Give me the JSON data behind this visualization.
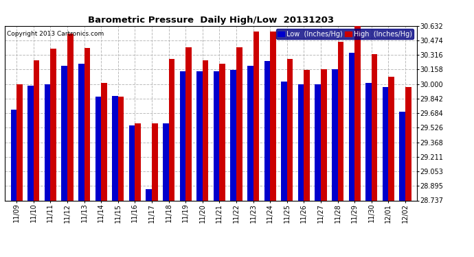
{
  "title": "Barometric Pressure  Daily High/Low  20131203",
  "copyright": "Copyright 2013 Cartronics.com",
  "legend_low": "Low  (Inches/Hg)",
  "legend_high": "High  (Inches/Hg)",
  "low_color": "#0000cc",
  "high_color": "#cc0000",
  "background_color": "#ffffff",
  "grid_color": "#bbbbbb",
  "ymin": 28.737,
  "ymax": 30.632,
  "yticks": [
    28.737,
    28.895,
    29.053,
    29.211,
    29.368,
    29.526,
    29.684,
    29.842,
    30.0,
    30.158,
    30.316,
    30.474,
    30.632
  ],
  "dates": [
    "11/09",
    "11/10",
    "11/11",
    "11/12",
    "11/13",
    "11/14",
    "11/15",
    "11/16",
    "11/17",
    "11/18",
    "11/19",
    "11/20",
    "11/21",
    "11/22",
    "11/23",
    "11/24",
    "11/25",
    "11/26",
    "11/27",
    "11/28",
    "11/29",
    "11/30",
    "12/01",
    "12/02"
  ],
  "lows": [
    29.72,
    29.98,
    30.0,
    30.2,
    30.22,
    29.86,
    29.87,
    29.55,
    28.86,
    29.57,
    30.14,
    30.14,
    30.14,
    30.15,
    30.2,
    30.25,
    30.03,
    30.0,
    30.0,
    30.16,
    30.34,
    30.01,
    29.97,
    29.7
  ],
  "highs": [
    30.0,
    30.26,
    30.38,
    30.55,
    30.39,
    30.01,
    29.86,
    29.57,
    29.57,
    30.27,
    30.4,
    30.26,
    30.22,
    30.4,
    30.57,
    30.57,
    30.27,
    30.15,
    30.16,
    30.46,
    30.63,
    30.32,
    30.08,
    29.97
  ]
}
